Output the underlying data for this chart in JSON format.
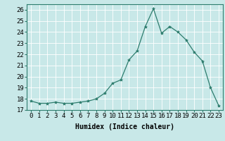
{
  "x": [
    0,
    1,
    2,
    3,
    4,
    5,
    6,
    7,
    8,
    9,
    10,
    11,
    12,
    13,
    14,
    15,
    16,
    17,
    18,
    19,
    20,
    21,
    22,
    23
  ],
  "y": [
    17.8,
    17.6,
    17.6,
    17.7,
    17.6,
    17.6,
    17.7,
    17.8,
    18.0,
    18.5,
    19.4,
    19.7,
    21.5,
    22.3,
    24.5,
    26.1,
    23.9,
    24.5,
    24.0,
    23.3,
    22.2,
    21.4,
    19.0,
    17.4
  ],
  "line_color": "#2e7d6e",
  "marker": "*",
  "marker_size": 3,
  "bg_color": "#c8e8e8",
  "grid_color": "#e8f8f8",
  "xlabel": "Humidex (Indice chaleur)",
  "xlim": [
    -0.5,
    23.5
  ],
  "ylim": [
    17,
    26.5
  ],
  "yticks": [
    17,
    18,
    19,
    20,
    21,
    22,
    23,
    24,
    25,
    26
  ],
  "xticks": [
    0,
    1,
    2,
    3,
    4,
    5,
    6,
    7,
    8,
    9,
    10,
    11,
    12,
    13,
    14,
    15,
    16,
    17,
    18,
    19,
    20,
    21,
    22,
    23
  ],
  "xlabel_fontsize": 7,
  "tick_fontsize": 6.5
}
